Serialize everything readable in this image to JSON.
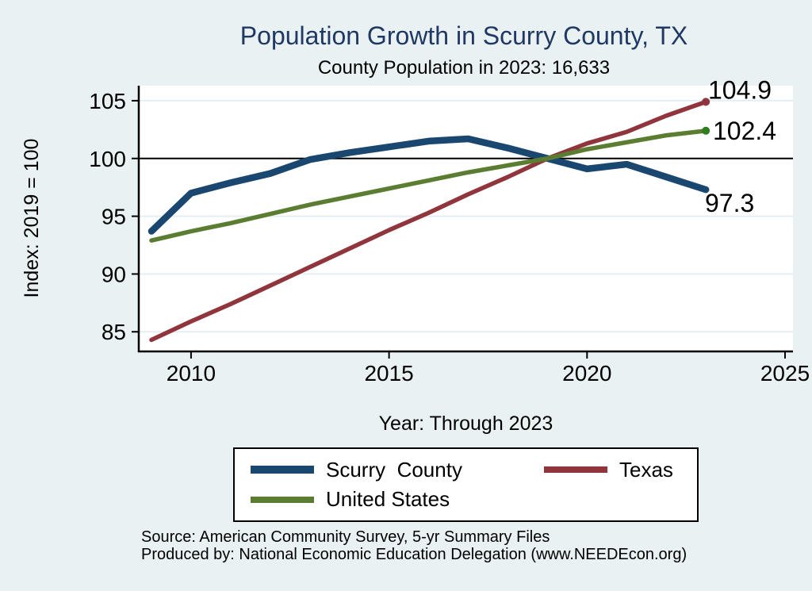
{
  "title": "Population Growth in Scurry County, TX",
  "subtitle": "County Population in 2023: 16,633",
  "axis": {
    "xlabel": "Year: Through 2023",
    "ylabel": "Index: 2019 = 100"
  },
  "colors": {
    "background": "#e9f1f3",
    "plot_background": "#ffffff",
    "title_text": "#1f3864",
    "axis_line": "#000000",
    "grid_line": "#e7eef2",
    "reference_line": "#000000",
    "scurry_county": "#1a476f",
    "texas": "#90353b",
    "united_states": "#5a7d32",
    "united_states_end_dot": "#2f7d1f"
  },
  "chart_data": {
    "type": "line",
    "title": "Population Growth in Scurry County, TX",
    "subtitle": "County Population in 2023: 16,633",
    "xlabel": "Year: Through 2023",
    "ylabel": "Index: 2019 = 100",
    "x": [
      2009,
      2010,
      2011,
      2012,
      2013,
      2014,
      2015,
      2016,
      2017,
      2018,
      2019,
      2020,
      2021,
      2022,
      2023
    ],
    "series": [
      {
        "name": "Scurry  County",
        "key": "scurry_county",
        "color": "#1a476f",
        "line_width": 8.5,
        "values": [
          93.7,
          97.0,
          97.9,
          98.7,
          99.9,
          100.5,
          101.0,
          101.5,
          101.7,
          100.9,
          100.0,
          99.1,
          99.5,
          98.4,
          97.3
        ],
        "end_label": "97.3",
        "end_dot": false
      },
      {
        "name": "Texas",
        "key": "texas",
        "color": "#90353b",
        "line_width": 5.5,
        "values": [
          84.3,
          85.9,
          87.4,
          89.0,
          90.6,
          92.2,
          93.8,
          95.3,
          96.9,
          98.4,
          100.0,
          101.3,
          102.3,
          103.7,
          104.9
        ],
        "end_label": "104.9",
        "end_dot": true
      },
      {
        "name": "United States",
        "key": "united_states",
        "color": "#5a7d32",
        "line_width": 5.5,
        "values": [
          92.9,
          93.7,
          94.4,
          95.2,
          96.0,
          96.7,
          97.4,
          98.1,
          98.8,
          99.4,
          100.0,
          100.8,
          101.4,
          102.0,
          102.4
        ],
        "end_label": "102.4",
        "end_dot": true,
        "end_dot_color": "#2f7d1f"
      }
    ],
    "x_ticks": [
      2010,
      2015,
      2020,
      2025
    ],
    "y_ticks": [
      85,
      90,
      95,
      100,
      105
    ],
    "xlim": [
      2008.68,
      2025.2
    ],
    "ylim": [
      83.3,
      106.3
    ],
    "reference_line_y": 100,
    "grid": "horizontal",
    "legend_position": "bottom-center"
  },
  "legend": {
    "items": [
      {
        "label": "Scurry  County",
        "color": "#1a476f",
        "thickness": 10
      },
      {
        "label": "Texas",
        "color": "#90353b",
        "thickness": 8
      },
      {
        "label": "United States",
        "color": "#5a7d32",
        "thickness": 8
      }
    ]
  },
  "footer": {
    "source_line": "Source: American Community Survey, 5-yr Summary Files",
    "produced_by_line": "Produced by: National Economic Education Delegation (www.NEEDEcon.org)"
  }
}
